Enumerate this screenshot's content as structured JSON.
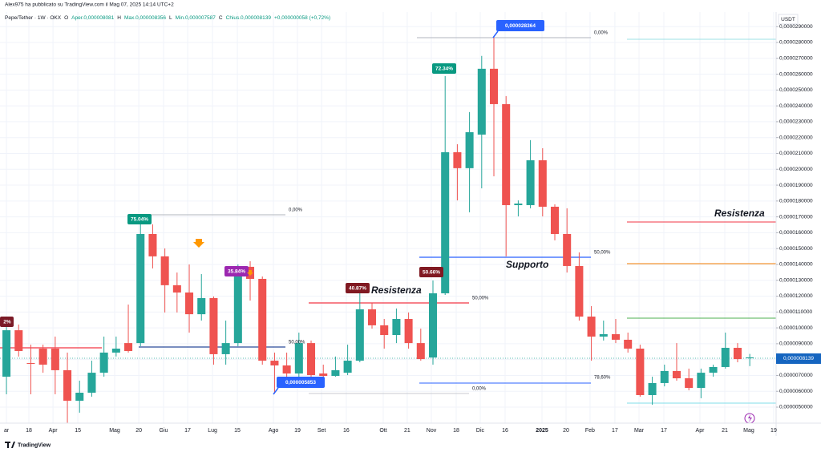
{
  "chart_data": {
    "type": "candlestick",
    "header": "Alex975 ha pubblicato su TradingView.com il Mag 07, 2025 14:14 UTC+2",
    "symbol": "Pepe/Tether · 1W · OKX",
    "ohlc_legend": [
      "O",
      "Aper.0,000008081",
      "H",
      "Max.0,000008356",
      "L",
      "Min.0,000007587",
      "C",
      "Chius.0,000008139",
      "+0,000000058 (+0,72%)"
    ],
    "currency": "USDT",
    "brand": "TradingView",
    "up_color": "#26a69a",
    "down_color": "#ef5350",
    "grid": true,
    "open": [
      6.92e-06,
      9.85e-06,
      7.78e-06,
      8.69e-06,
      8.69e-06,
      7.33e-06,
      5.4e-06,
      5.91e-06,
      7.17e-06,
      8.44e-06,
      9.04e-06,
      9.04e-06,
      1.592e-05,
      1.451e-05,
      1.269e-05,
      1.223e-05,
      1.086e-05,
      1.188e-05,
      8.34e-06,
      9.04e-06,
      1.385e-05,
      1.309e-05,
      7.93e-06,
      7.63e-06,
      7.12e-06,
      9.04e-06,
      7.12e-06,
      6.97e-06,
      7.17e-06,
      7.93e-06,
      1.117e-05,
      1.016e-05,
      9.55e-06,
      1.056e-05,
      9.04e-06,
      8.13e-06,
      1.218e-05,
      2.108e-05,
      2.007e-05,
      2.219e-05,
      2.634e-05,
      2.411e-05,
      1.774e-05,
      1.774e-05,
      2.057e-05,
      1.764e-05,
      1.592e-05,
      1.39e-05,
      1.071e-05,
      9.45e-06,
      9.6e-06,
      9.25e-06,
      8.69e-06,
      5.76e-06,
      6.52e-06,
      7.28e-06,
      6.82e-06,
      6.21e-06,
      7.17e-06,
      7.53e-06,
      8.74e-06,
      8.081e-06
    ],
    "high": [
      1.046e-05,
      1.021e-05,
      8.94e-06,
      8.94e-06,
      9.45e-06,
      8.44e-06,
      6.67e-06,
      7.93e-06,
      9.45e-06,
      9.45e-06,
      1.147e-05,
      1.703e-05,
      1.653e-05,
      1.501e-05,
      1.349e-05,
      1.4e-05,
      1.339e-05,
      1.198e-05,
      1.046e-05,
      1.4e-05,
      1.42e-05,
      1.324e-05,
      8.44e-06,
      8.44e-06,
      9.7e-06,
      9.2e-06,
      7.68e-06,
      8.19e-06,
      8.94e-06,
      1.248e-05,
      1.157e-05,
      1.056e-05,
      1.122e-05,
      1.097e-05,
      9.95e-06,
      1.299e-05,
      2.588e-05,
      2.158e-05,
      2.361e-05,
      2.715e-05,
      2.8364e-05,
      2.462e-05,
      1.804e-05,
      2.184e-05,
      2.133e-05,
      1.779e-05,
      1.754e-05,
      1.476e-05,
      1.137e-05,
      1.046e-05,
      1.056e-05,
      9.7e-06,
      8.94e-06,
      6.92e-06,
      7.68e-06,
      9.04e-06,
      7.43e-06,
      7.43e-06,
      7.68e-06,
      9.7e-06,
      9.04e-06,
      8.356e-06
    ],
    "low": [
      5.81e-06,
      8.19e-06,
      5.81e-06,
      7.17e-06,
      5.81e-06,
      3.99e-06,
      4.65e-06,
      5.66e-06,
      6.92e-06,
      8.19e-06,
      8.44e-06,
      8.84e-06,
      1.375e-05,
      1.097e-05,
      1.097e-05,
      9.7e-06,
      1.046e-05,
      7.68e-06,
      7.68e-06,
      8.84e-06,
      1.172e-05,
      7.68e-06,
      5.853e-06,
      6.21e-06,
      6.92e-06,
      6.82e-06,
      6.82e-06,
      6.92e-06,
      7.02e-06,
      7.83e-06,
      9.95e-06,
      8.69e-06,
      9.04e-06,
      8.69e-06,
      7.93e-06,
      7.68e-06,
      1.208e-05,
      1.804e-05,
      1.729e-05,
      1.88e-05,
      1.956e-05,
      1.451e-05,
      1.703e-05,
      1.754e-05,
      1.703e-05,
      1.552e-05,
      1.349e-05,
      1.046e-05,
      7.93e-06,
      9.2e-06,
      9.04e-06,
      8.44e-06,
      5.66e-06,
      5.15e-06,
      6.31e-06,
      6.67e-06,
      6.06e-06,
      5.56e-06,
      6.92e-06,
      7.43e-06,
      7.83e-06,
      7.587e-06
    ],
    "close": [
      9.85e-06,
      8.54e-06,
      7.73e-06,
      7.68e-06,
      7.33e-06,
      5.4e-06,
      5.91e-06,
      7.17e-06,
      8.44e-06,
      8.69e-06,
      8.54e-06,
      1.592e-05,
      1.451e-05,
      1.269e-05,
      1.223e-05,
      1.086e-05,
      1.188e-05,
      8.34e-06,
      9.04e-06,
      1.385e-05,
      1.309e-05,
      7.93e-06,
      7.63e-06,
      7.12e-06,
      9.04e-06,
      7.02e-06,
      6.97e-06,
      7.33e-06,
      7.93e-06,
      1.117e-05,
      1.016e-05,
      9.55e-06,
      1.056e-05,
      9.04e-06,
      8.03e-06,
      1.218e-05,
      2.108e-05,
      2.007e-05,
      2.234e-05,
      2.634e-05,
      2.411e-05,
      1.774e-05,
      1.784e-05,
      2.057e-05,
      1.764e-05,
      1.592e-05,
      1.39e-05,
      1.071e-05,
      9.45e-06,
      9.6e-06,
      9.25e-06,
      8.69e-06,
      5.76e-06,
      6.52e-06,
      7.28e-06,
      6.82e-06,
      6.21e-06,
      7.17e-06,
      7.53e-06,
      8.74e-06,
      8.03e-06,
      8.139e-06
    ],
    "xlim": [
      -0.53,
      63.16
    ],
    "xticks": [
      {
        "value": 0,
        "label": "ar"
      },
      {
        "value": 1.84,
        "label": "18"
      },
      {
        "value": 3.82,
        "label": "Apr"
      },
      {
        "value": 5.86,
        "label": "15"
      },
      {
        "value": 8.88,
        "label": "Mag"
      },
      {
        "value": 10.86,
        "label": "20"
      },
      {
        "value": 12.89,
        "label": "Giu"
      },
      {
        "value": 14.87,
        "label": "17"
      },
      {
        "value": 16.91,
        "label": "Lug"
      },
      {
        "value": 18.95,
        "label": "15"
      },
      {
        "value": 21.91,
        "label": "Ago"
      },
      {
        "value": 23.88,
        "label": "19"
      },
      {
        "value": 25.86,
        "label": "Set"
      },
      {
        "value": 27.89,
        "label": "16"
      },
      {
        "value": 30.92,
        "label": "Ott"
      },
      {
        "value": 32.89,
        "label": "21"
      },
      {
        "value": 34.87,
        "label": "Nov"
      },
      {
        "value": 36.91,
        "label": "18"
      },
      {
        "value": 38.88,
        "label": "Dic"
      },
      {
        "value": 40.92,
        "label": "16"
      },
      {
        "value": 43.95,
        "label": "2025"
      },
      {
        "value": 45.92,
        "label": "20"
      },
      {
        "value": 47.89,
        "label": "Feb"
      },
      {
        "value": 49.93,
        "label": "17"
      },
      {
        "value": 51.91,
        "label": "Mar"
      },
      {
        "value": 53.95,
        "label": "17"
      },
      {
        "value": 56.91,
        "label": "Apr"
      },
      {
        "value": 58.95,
        "label": "21"
      },
      {
        "value": 60.92,
        "label": "Mag"
      },
      {
        "value": 62.96,
        "label": "19"
      }
    ],
    "ylim": [
      3.99e-06,
      2.992e-05
    ],
    "yticks": [
      {
        "value": 5e-06,
        "label": "0,0000050000"
      },
      {
        "value": 6e-06,
        "label": "0,0000060000"
      },
      {
        "value": 7e-06,
        "label": "0,0000070000"
      },
      {
        "value": 8e-06,
        "label": "0,0000080000"
      },
      {
        "value": 9e-06,
        "label": "0,0000090000"
      },
      {
        "value": 1e-05,
        "label": "0,0000100000"
      },
      {
        "value": 1.1e-05,
        "label": "0,0000110000"
      },
      {
        "value": 1.2e-05,
        "label": "0,0000120000"
      },
      {
        "value": 1.3e-05,
        "label": "0,0000130000"
      },
      {
        "value": 1.4e-05,
        "label": "0,0000140000"
      },
      {
        "value": 1.5e-05,
        "label": "0,0000150000"
      },
      {
        "value": 1.6e-05,
        "label": "0,0000160000"
      },
      {
        "value": 1.7e-05,
        "label": "0,0000170000"
      },
      {
        "value": 1.8e-05,
        "label": "0,0000180000"
      },
      {
        "value": 1.9e-05,
        "label": "0,0000190000"
      },
      {
        "value": 2e-05,
        "label": "0,0000200000"
      },
      {
        "value": 2.1e-05,
        "label": "0,0000210000"
      },
      {
        "value": 2.2e-05,
        "label": "0,0000220000"
      },
      {
        "value": 2.3e-05,
        "label": "0,0000230000"
      },
      {
        "value": 2.4e-05,
        "label": "0,0000240000"
      },
      {
        "value": 2.5e-05,
        "label": "0,0000250000"
      },
      {
        "value": 2.6e-05,
        "label": "0,0000260000"
      },
      {
        "value": 2.7e-05,
        "label": "0,0000270000"
      },
      {
        "value": 2.8e-05,
        "label": "0,0000280000"
      },
      {
        "value": 2.9e-05,
        "label": "0,0000290000"
      }
    ],
    "annotations": [
      "2%",
      "75.04%",
      "0,00%",
      "35.84%",
      "50,00%",
      "0,000005853",
      "40.87%",
      "Resistenza",
      "50,00%",
      "0,00%",
      "50.66%",
      "72.34%",
      "0,000028364",
      "0,00%",
      "50,00%",
      "Supporto",
      "78,60%",
      "Resistenza",
      "0,000008139"
    ]
  }
}
